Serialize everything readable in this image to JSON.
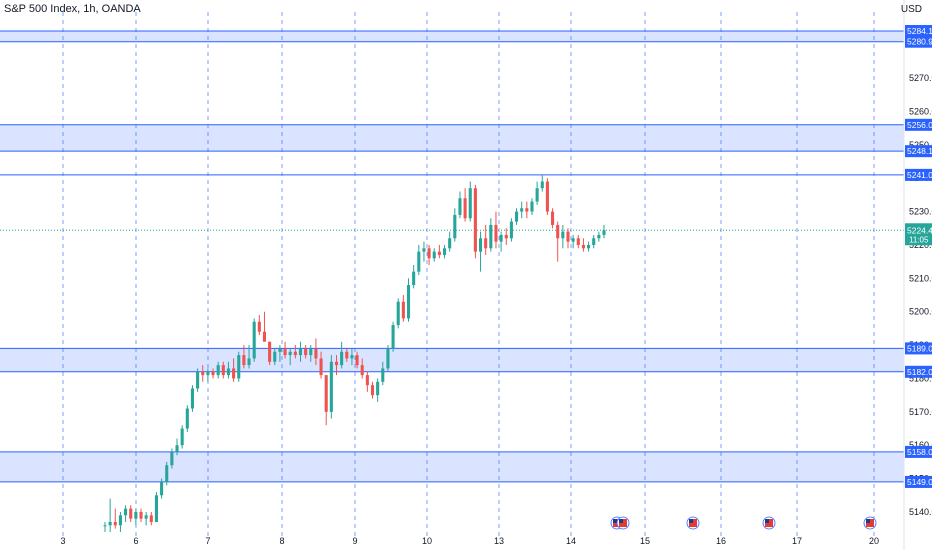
{
  "header": {
    "title": "S&P 500 Index, 1h, OANDA",
    "currency": "USD"
  },
  "colors": {
    "up": "#26a69a",
    "down": "#ef5350",
    "zone_fill": "#d6e0ff",
    "zone_line": "#2962ff",
    "grid_line": "#2962ff",
    "current_price": "#26a69a"
  },
  "chart_data": {
    "type": "candlestick",
    "ylim": [
      5134,
      5288
    ],
    "y_ticks": [
      5140,
      5150,
      5160,
      5170,
      5180,
      5190,
      5200,
      5210,
      5220,
      5230,
      5240,
      5250,
      5260,
      5270
    ],
    "y_tick_labels": [
      "5140.0",
      "5150.0",
      "5160.0",
      "5170.0",
      "5180.0",
      "5190.0",
      "5200.0",
      "5210.0",
      "5220.0",
      "5230.0",
      "5240.0",
      "5250.0",
      "5260.0",
      "5270.0"
    ],
    "x_ticks": [
      {
        "label": "3",
        "pos": 0
      },
      {
        "label": "6",
        "pos": 1
      },
      {
        "label": "7",
        "pos": 2
      },
      {
        "label": "8",
        "pos": 3
      },
      {
        "label": "9",
        "pos": 4
      },
      {
        "label": "10",
        "pos": 5
      },
      {
        "label": "13",
        "pos": 6
      },
      {
        "label": "14",
        "pos": 7
      },
      {
        "label": "15",
        "pos": 8
      },
      {
        "label": "16",
        "pos": 9
      },
      {
        "label": "17",
        "pos": 10
      },
      {
        "label": "20",
        "pos": 11
      }
    ],
    "zones": [
      {
        "top": 5284.1,
        "bottom": 5280.9,
        "label_top": "5284.1",
        "label_bottom": "5280.9"
      },
      {
        "top": 5256.0,
        "bottom": 5248.1,
        "label_top": "5256.0",
        "label_bottom": "5248.1"
      },
      {
        "top": 5189.0,
        "bottom": 5182.0,
        "label_top": "5189.0",
        "label_bottom": "5182.0"
      },
      {
        "top": 5158.0,
        "bottom": 5149.0,
        "label_top": "5158.0",
        "label_bottom": "5149.0"
      }
    ],
    "single_lines": [
      {
        "value": 5241.0,
        "label": "5241.0"
      }
    ],
    "current_price": {
      "value": 5224.4,
      "label": "5224.4",
      "countdown": "11:05"
    },
    "candles_ohlc": [
      [
        5136,
        5137,
        5134,
        5136
      ],
      [
        5136,
        5144,
        5134,
        5137
      ],
      [
        5137,
        5141,
        5135,
        5136
      ],
      [
        5136,
        5140,
        5134,
        5139
      ],
      [
        5139,
        5142,
        5137,
        5141
      ],
      [
        5141,
        5142,
        5137,
        5138
      ],
      [
        5138,
        5141,
        5136,
        5140
      ],
      [
        5140,
        5141,
        5137,
        5138
      ],
      [
        5138,
        5140,
        5136,
        5139
      ],
      [
        5139,
        5140,
        5136,
        5137
      ],
      [
        5137,
        5146,
        5137,
        5145
      ],
      [
        5145,
        5150,
        5144,
        5149
      ],
      [
        5149,
        5155,
        5148,
        5154
      ],
      [
        5154,
        5159,
        5153,
        5158
      ],
      [
        5158,
        5162,
        5157,
        5160
      ],
      [
        5160,
        5166,
        5159,
        5165
      ],
      [
        5165,
        5172,
        5164,
        5171
      ],
      [
        5171,
        5178,
        5170,
        5177
      ],
      [
        5177,
        5183,
        5176,
        5182
      ],
      [
        5182,
        5184,
        5179,
        5181
      ],
      [
        5181,
        5183,
        5179,
        5182
      ],
      [
        5182,
        5183,
        5180,
        5181
      ],
      [
        5181,
        5185,
        5180,
        5184
      ],
      [
        5184,
        5185,
        5180,
        5181
      ],
      [
        5181,
        5185,
        5180,
        5183
      ],
      [
        5183,
        5186,
        5179,
        5180
      ],
      [
        5180,
        5188,
        5179,
        5187
      ],
      [
        5187,
        5190,
        5183,
        5184
      ],
      [
        5184,
        5190,
        5183,
        5186
      ],
      [
        5186,
        5198,
        5185,
        5197
      ],
      [
        5197,
        5199,
        5193,
        5194
      ],
      [
        5194,
        5200,
        5193,
        5191
      ],
      [
        5191,
        5191,
        5184,
        5185
      ],
      [
        5185,
        5189,
        5184,
        5188
      ],
      [
        5188,
        5190,
        5185,
        5189
      ],
      [
        5189,
        5191,
        5186,
        5187
      ],
      [
        5187,
        5189,
        5184,
        5188
      ],
      [
        5188,
        5190,
        5186,
        5187
      ],
      [
        5187,
        5191,
        5185,
        5189
      ],
      [
        5189,
        5190,
        5186,
        5187
      ],
      [
        5187,
        5190,
        5185,
        5189
      ],
      [
        5189,
        5192,
        5184,
        5186
      ],
      [
        5186,
        5188,
        5180,
        5181
      ],
      [
        5181,
        5181,
        5166,
        5170
      ],
      [
        5170,
        5187,
        5168,
        5185
      ],
      [
        5185,
        5187,
        5181,
        5184
      ],
      [
        5184,
        5191,
        5183,
        5188
      ],
      [
        5188,
        5189,
        5185,
        5186
      ],
      [
        5186,
        5189,
        5184,
        5187
      ],
      [
        5187,
        5188,
        5183,
        5184
      ],
      [
        5184,
        5186,
        5180,
        5181
      ],
      [
        5181,
        5182,
        5176,
        5178
      ],
      [
        5178,
        5179,
        5174,
        5175
      ],
      [
        5175,
        5180,
        5173,
        5179
      ],
      [
        5179,
        5185,
        5178,
        5183
      ],
      [
        5183,
        5190,
        5182,
        5189
      ],
      [
        5189,
        5197,
        5188,
        5196
      ],
      [
        5196,
        5204,
        5195,
        5203
      ],
      [
        5203,
        5205,
        5197,
        5198
      ],
      [
        5198,
        5210,
        5197,
        5208
      ],
      [
        5208,
        5214,
        5207,
        5212
      ],
      [
        5212,
        5220,
        5211,
        5218
      ],
      [
        5218,
        5221,
        5215,
        5219
      ],
      [
        5219,
        5220,
        5214,
        5216
      ],
      [
        5216,
        5219,
        5215,
        5218
      ],
      [
        5218,
        5220,
        5216,
        5217
      ],
      [
        5217,
        5220,
        5216,
        5219
      ],
      [
        5219,
        5224,
        5218,
        5222
      ],
      [
        5222,
        5231,
        5221,
        5229
      ],
      [
        5229,
        5236,
        5228,
        5234
      ],
      [
        5234,
        5237,
        5227,
        5228
      ],
      [
        5228,
        5239,
        5227,
        5237
      ],
      [
        5237,
        5238,
        5216,
        5218
      ],
      [
        5218,
        5224,
        5212,
        5222
      ],
      [
        5222,
        5226,
        5217,
        5219
      ],
      [
        5219,
        5228,
        5218,
        5226
      ],
      [
        5226,
        5230,
        5219,
        5221
      ],
      [
        5221,
        5224,
        5218,
        5223
      ],
      [
        5223,
        5225,
        5220,
        5222
      ],
      [
        5222,
        5228,
        5221,
        5227
      ],
      [
        5227,
        5231,
        5226,
        5230
      ],
      [
        5230,
        5233,
        5228,
        5231
      ],
      [
        5231,
        5233,
        5228,
        5230
      ],
      [
        5230,
        5234,
        5229,
        5233
      ],
      [
        5233,
        5239,
        5232,
        5237
      ],
      [
        5237,
        5241,
        5236,
        5239
      ],
      [
        5239,
        5240,
        5229,
        5230
      ],
      [
        5230,
        5231,
        5225,
        5226
      ],
      [
        5226,
        5227,
        5215,
        5222
      ],
      [
        5222,
        5226,
        5219,
        5224
      ],
      [
        5224,
        5225,
        5219,
        5221
      ],
      [
        5221,
        5223,
        5219,
        5222
      ],
      [
        5222,
        5223,
        5219,
        5220
      ],
      [
        5220,
        5222,
        5218,
        5219
      ],
      [
        5219,
        5221,
        5218,
        5220
      ],
      [
        5220,
        5223,
        5219,
        5222
      ],
      [
        5222,
        5224,
        5221,
        5223
      ],
      [
        5223,
        5226,
        5222,
        5224.4
      ]
    ]
  }
}
